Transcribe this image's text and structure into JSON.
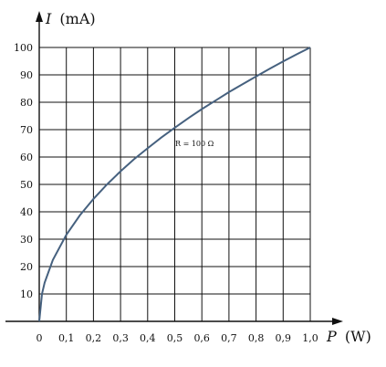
{
  "chart_data": {
    "type": "line",
    "x_axis": {
      "label": "W",
      "symbol": "P",
      "range": [
        0,
        1.0
      ],
      "ticks": [
        "0",
        "0,1",
        "0,2",
        "0,3",
        "0,4",
        "0,5",
        "0,6",
        "0,7",
        "0,8",
        "0,9",
        "1,0"
      ]
    },
    "y_axis": {
      "label": "mA",
      "symbol": "I",
      "range": [
        0,
        100
      ],
      "ticks": [
        "10",
        "20",
        "30",
        "40",
        "50",
        "60",
        "70",
        "80",
        "90",
        "100"
      ]
    },
    "grid": true,
    "series": [
      {
        "name": "R = 100 Ω",
        "color": "#46617f",
        "x": [
          0,
          0.01,
          0.02,
          0.05,
          0.1,
          0.15,
          0.2,
          0.25,
          0.3,
          0.35,
          0.4,
          0.45,
          0.5,
          0.55,
          0.6,
          0.65,
          0.7,
          0.75,
          0.8,
          0.85,
          0.9,
          0.95,
          1.0
        ],
        "y": [
          0,
          10,
          14.1,
          22.4,
          31.6,
          38.7,
          44.7,
          50,
          54.8,
          59.2,
          63.2,
          67.1,
          70.7,
          74.2,
          77.5,
          80.6,
          83.7,
          86.6,
          89.4,
          92.2,
          94.9,
          97.5,
          100
        ]
      }
    ],
    "annotation": "R = 100 Ω"
  }
}
